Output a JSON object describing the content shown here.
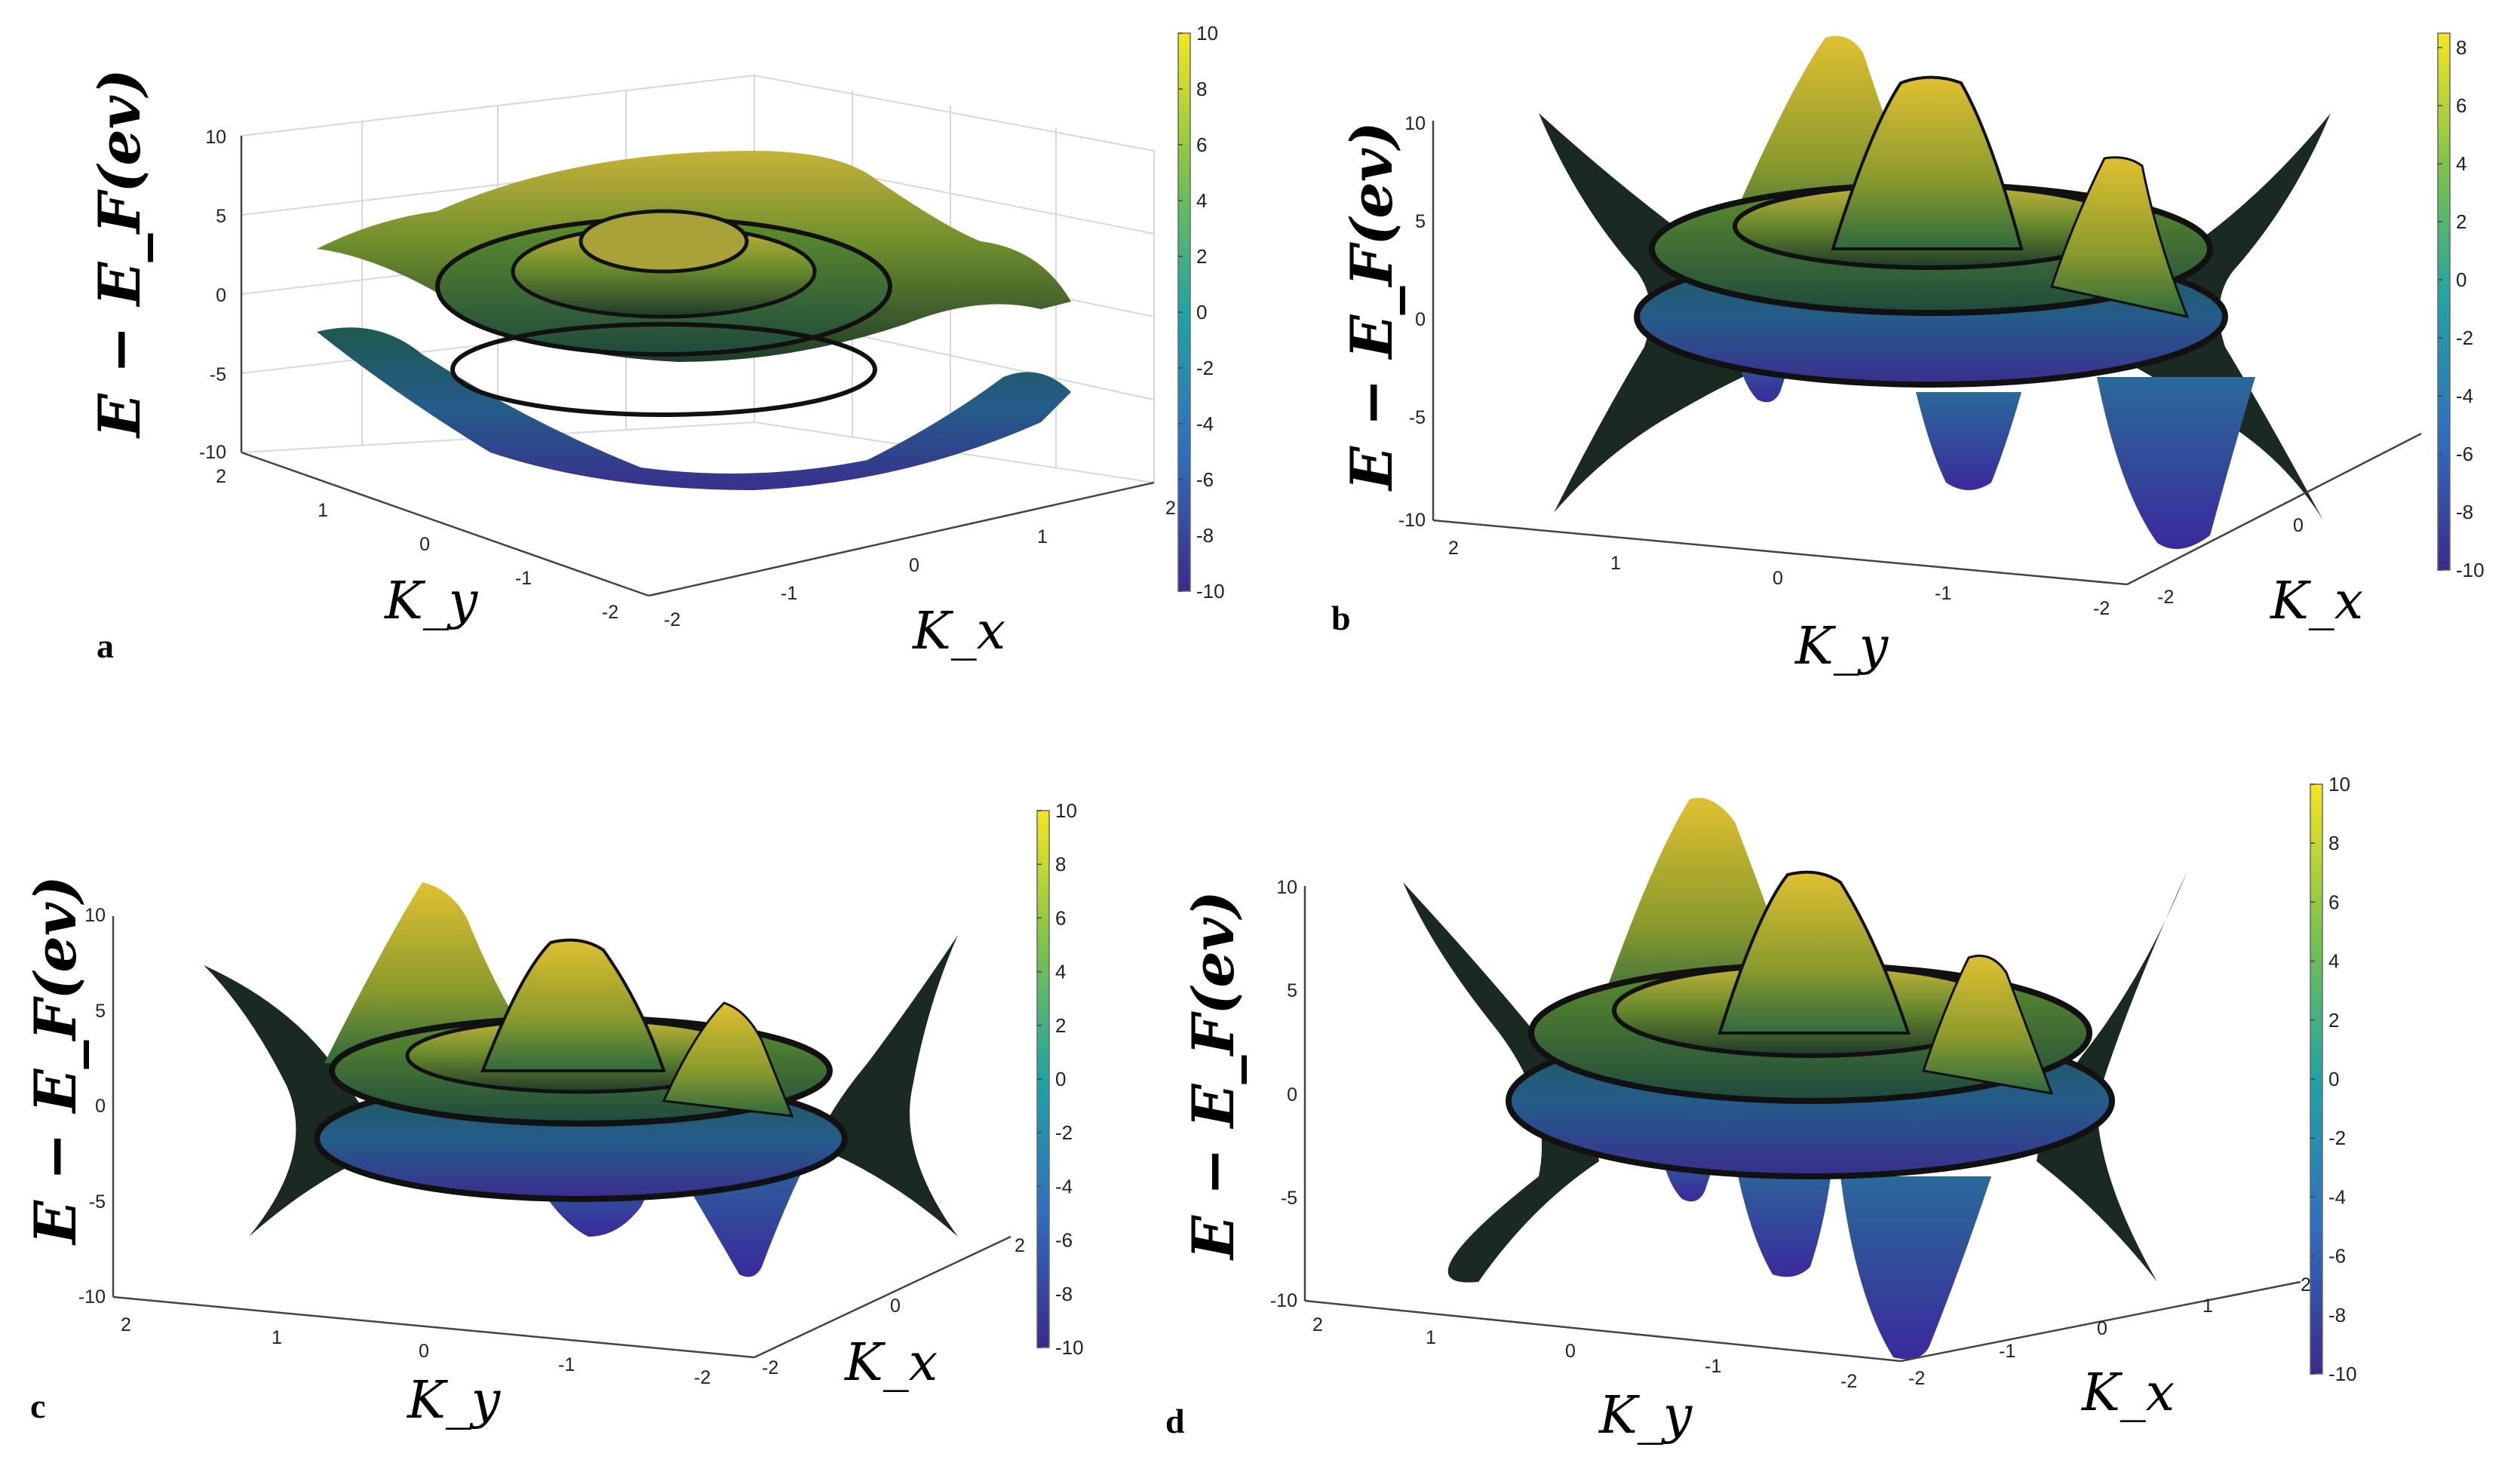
{
  "chart_data": [
    {
      "panel": "a",
      "type": "surface3d",
      "ylabel": "E − E_F(ev)",
      "xlabel": "K_x",
      "zlabel_axis_y": "K_y",
      "z_ticks": [
        "10",
        "5",
        "0",
        "-5",
        "-10"
      ],
      "ky_ticks": [
        "2",
        "1",
        "0",
        "-1",
        "-2"
      ],
      "kx_ticks": [
        "-2",
        "-1",
        "0",
        "1",
        "2"
      ],
      "colorbar": {
        "range": [
          -10,
          10
        ],
        "ticks": [
          "10",
          "8",
          "6",
          "4",
          "2",
          "0",
          "-2",
          "-4",
          "-6",
          "-8",
          "-10"
        ]
      },
      "box_grid": true
    },
    {
      "panel": "b",
      "type": "surface3d",
      "ylabel": "E − E_F(ev)",
      "xlabel": "K_x",
      "zlabel_axis_y": "K_y",
      "z_ticks": [
        "10",
        "5",
        "0",
        "-5",
        "-10"
      ],
      "ky_ticks": [
        "2",
        "1",
        "0",
        "-1",
        "-2"
      ],
      "kx_ticks": [
        "-2",
        "0"
      ],
      "colorbar": {
        "range": [
          -10,
          8.5
        ],
        "ticks": [
          "8",
          "6",
          "4",
          "2",
          "0",
          "-2",
          "-4",
          "-6",
          "-8",
          "-10"
        ]
      },
      "box_grid": false
    },
    {
      "panel": "c",
      "type": "surface3d",
      "ylabel": "E − E_F(ev)",
      "xlabel": "K_x",
      "zlabel_axis_y": "K_y",
      "z_ticks": [
        "10",
        "5",
        "0",
        "-5",
        "-10"
      ],
      "ky_ticks": [
        "2",
        "1",
        "0",
        "-1",
        "-2"
      ],
      "kx_ticks": [
        "-2",
        "0",
        "2"
      ],
      "colorbar": {
        "range": [
          -10,
          10
        ],
        "ticks": [
          "10",
          "8",
          "6",
          "4",
          "2",
          "0",
          "-2",
          "-4",
          "-6",
          "-8",
          "-10"
        ]
      },
      "box_grid": false
    },
    {
      "panel": "d",
      "type": "surface3d",
      "ylabel": "E − E_F(ev)",
      "xlabel": "K_x",
      "zlabel_axis_y": "K_y",
      "z_ticks": [
        "10",
        "5",
        "0",
        "-5",
        "-10"
      ],
      "ky_ticks": [
        "2",
        "1",
        "0",
        "-1",
        "-2"
      ],
      "kx_ticks": [
        "-2",
        "-1",
        "0",
        "1",
        "2"
      ],
      "colorbar": {
        "range": [
          -10,
          10
        ],
        "ticks": [
          "10",
          "8",
          "6",
          "4",
          "2",
          "0",
          "-2",
          "-4",
          "-6",
          "-8",
          "-10"
        ]
      },
      "box_grid": false
    }
  ],
  "colormap": {
    "low": "#3b2a8c",
    "mid": "#1f9e8a",
    "high": "#f5e61e",
    "edge": "#0a0a0a"
  }
}
